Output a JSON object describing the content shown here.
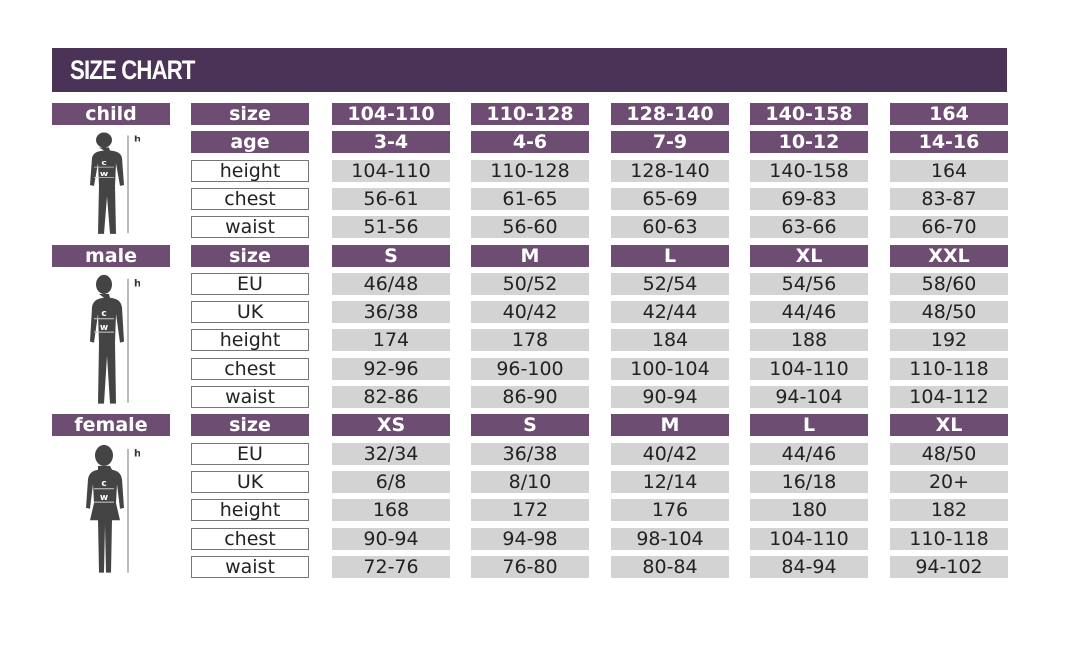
{
  "title": "SIZE CHART",
  "colors": {
    "header": "#4b3358",
    "label_bar": "#6d4e72",
    "cell": "#d3d3d3"
  },
  "sections": [
    {
      "name": "child",
      "figure_icon": "child-silhouette-icon",
      "figure_marks": [
        "h",
        "c",
        "w"
      ],
      "rows": [
        {
          "label": "size",
          "header": true,
          "values": [
            "104-110",
            "110-128",
            "128-140",
            "140-158",
            "164"
          ]
        },
        {
          "label": "age",
          "header": true,
          "values": [
            "3-4",
            "4-6",
            "7-9",
            "10-12",
            "14-16"
          ]
        },
        {
          "label": "height",
          "values": [
            "104-110",
            "110-128",
            "128-140",
            "140-158",
            "164"
          ]
        },
        {
          "label": "chest",
          "values": [
            "56-61",
            "61-65",
            "65-69",
            "69-83",
            "83-87"
          ]
        },
        {
          "label": "waist",
          "values": [
            "51-56",
            "56-60",
            "60-63",
            "63-66",
            "66-70"
          ]
        }
      ]
    },
    {
      "name": "male",
      "figure_icon": "male-silhouette-icon",
      "figure_marks": [
        "h",
        "c",
        "w"
      ],
      "rows": [
        {
          "label": "size",
          "header": true,
          "values": [
            "S",
            "M",
            "L",
            "XL",
            "XXL"
          ]
        },
        {
          "label": "EU",
          "values": [
            "46/48",
            "50/52",
            "52/54",
            "54/56",
            "58/60"
          ]
        },
        {
          "label": "UK",
          "values": [
            "36/38",
            "40/42",
            "42/44",
            "44/46",
            "48/50"
          ]
        },
        {
          "label": "height",
          "values": [
            "174",
            "178",
            "184",
            "188",
            "192"
          ]
        },
        {
          "label": "chest",
          "values": [
            "92-96",
            "96-100",
            "100-104",
            "104-110",
            "110-118"
          ]
        },
        {
          "label": "waist",
          "values": [
            "82-86",
            "86-90",
            "90-94",
            "94-104",
            "104-112"
          ]
        }
      ]
    },
    {
      "name": "female",
      "figure_icon": "female-silhouette-icon",
      "figure_marks": [
        "h",
        "c",
        "w"
      ],
      "rows": [
        {
          "label": "size",
          "header": true,
          "values": [
            "XS",
            "S",
            "M",
            "L",
            "XL"
          ]
        },
        {
          "label": "EU",
          "values": [
            "32/34",
            "36/38",
            "40/42",
            "44/46",
            "48/50"
          ]
        },
        {
          "label": "UK",
          "values": [
            "6/8",
            "8/10",
            "12/14",
            "16/18",
            "20+"
          ]
        },
        {
          "label": "height",
          "values": [
            "168",
            "172",
            "176",
            "180",
            "182"
          ]
        },
        {
          "label": "chest",
          "values": [
            "90-94",
            "94-98",
            "98-104",
            "104-110",
            "110-118"
          ]
        },
        {
          "label": "waist",
          "values": [
            "72-76",
            "76-80",
            "80-84",
            "84-94",
            "94-102"
          ]
        }
      ]
    }
  ]
}
